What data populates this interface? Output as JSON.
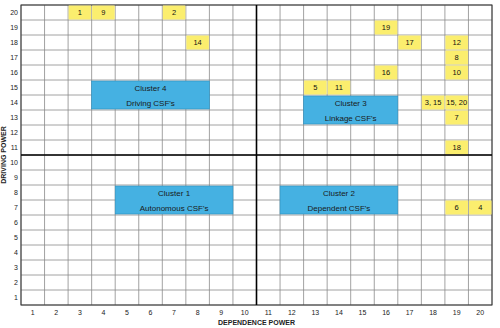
{
  "chart_data": {
    "type": "matrix",
    "x_label": "DEPENDENCE POWER",
    "y_label": "DRIVING POWER",
    "xlim": [
      0.5,
      20.5
    ],
    "ylim": [
      0.5,
      20.5
    ],
    "xticks": [
      1,
      2,
      3,
      4,
      5,
      6,
      7,
      8,
      9,
      10,
      11,
      12,
      13,
      14,
      15,
      16,
      17,
      18,
      19,
      20
    ],
    "yticks": [
      1,
      2,
      3,
      4,
      5,
      6,
      7,
      8,
      9,
      10,
      11,
      12,
      13,
      14,
      15,
      16,
      17,
      18,
      19,
      20
    ],
    "grid": true,
    "dividers": {
      "x": 10.5,
      "y": 10.5
    },
    "color": "#fbee6e",
    "x": [
      3,
      4,
      7,
      8,
      16,
      17,
      19,
      19,
      16,
      19,
      13,
      14,
      18,
      19,
      19,
      19,
      19,
      20
    ],
    "values": [
      20,
      20,
      20,
      18,
      19,
      18,
      18,
      17,
      16,
      16,
      15,
      15,
      14,
      14,
      13,
      11,
      7,
      7
    ],
    "labels": [
      "1",
      "9",
      "2",
      "14",
      "19",
      "17",
      "12",
      "8",
      "16",
      "10",
      "5",
      "11",
      "3, 15",
      "15, 20",
      "7",
      "18",
      "6",
      "4"
    ],
    "clusters": [
      {
        "title": "Cluster 4",
        "label": "Driving CSF's",
        "x": [
          3.5,
          8.5
        ],
        "y": [
          13.5,
          15.5
        ],
        "color": "#45b1e2"
      },
      {
        "title": "Cluster 3",
        "label": "Linkage CSF's",
        "x": [
          12.5,
          16.5
        ],
        "y": [
          12.5,
          14.5
        ],
        "color": "#45b1e2"
      },
      {
        "title": "Cluster 1",
        "label": "Autonomous CSF's",
        "x": [
          4.5,
          9.5
        ],
        "y": [
          6.5,
          8.5
        ],
        "color": "#45b1e2"
      },
      {
        "title": "Cluster 2",
        "label": "Dependent CSF's",
        "x": [
          11.5,
          16.5
        ],
        "y": [
          6.5,
          8.5
        ],
        "color": "#45b1e2"
      }
    ]
  }
}
